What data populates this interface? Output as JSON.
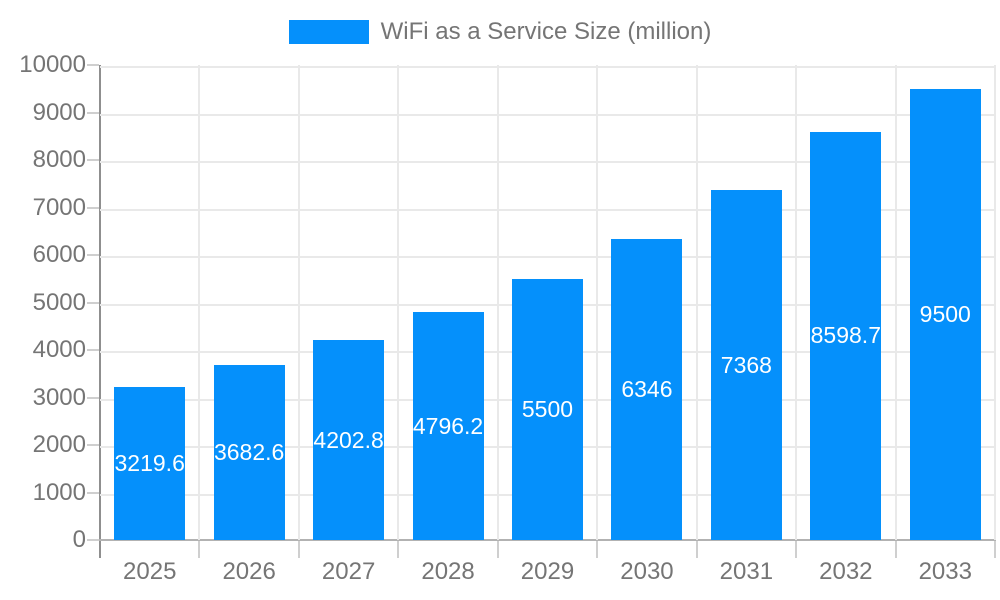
{
  "chart_data": {
    "type": "bar",
    "title": "WiFi as a Service Size (million)",
    "categories": [
      "2025",
      "2026",
      "2027",
      "2028",
      "2029",
      "2030",
      "2031",
      "2032",
      "2033"
    ],
    "values": [
      3219.6,
      3682.6,
      4202.8,
      4796.2,
      5500,
      6346,
      7368,
      8598.7,
      9500
    ],
    "value_labels": [
      "3219.6",
      "3682.6",
      "4202.8",
      "4796.2",
      "5500",
      "6346",
      "7368",
      "8598.7",
      "9500"
    ],
    "xlabel": "",
    "ylabel": "",
    "ylim": [
      0,
      10000
    ],
    "y_ticks": [
      0,
      1000,
      2000,
      3000,
      4000,
      5000,
      6000,
      7000,
      8000,
      9000,
      10000
    ],
    "grid": true,
    "legend_position": "top-center",
    "bar_color": "#0590FB",
    "bar_label_color": "#ffffff",
    "axis_text_color": "#757575"
  }
}
